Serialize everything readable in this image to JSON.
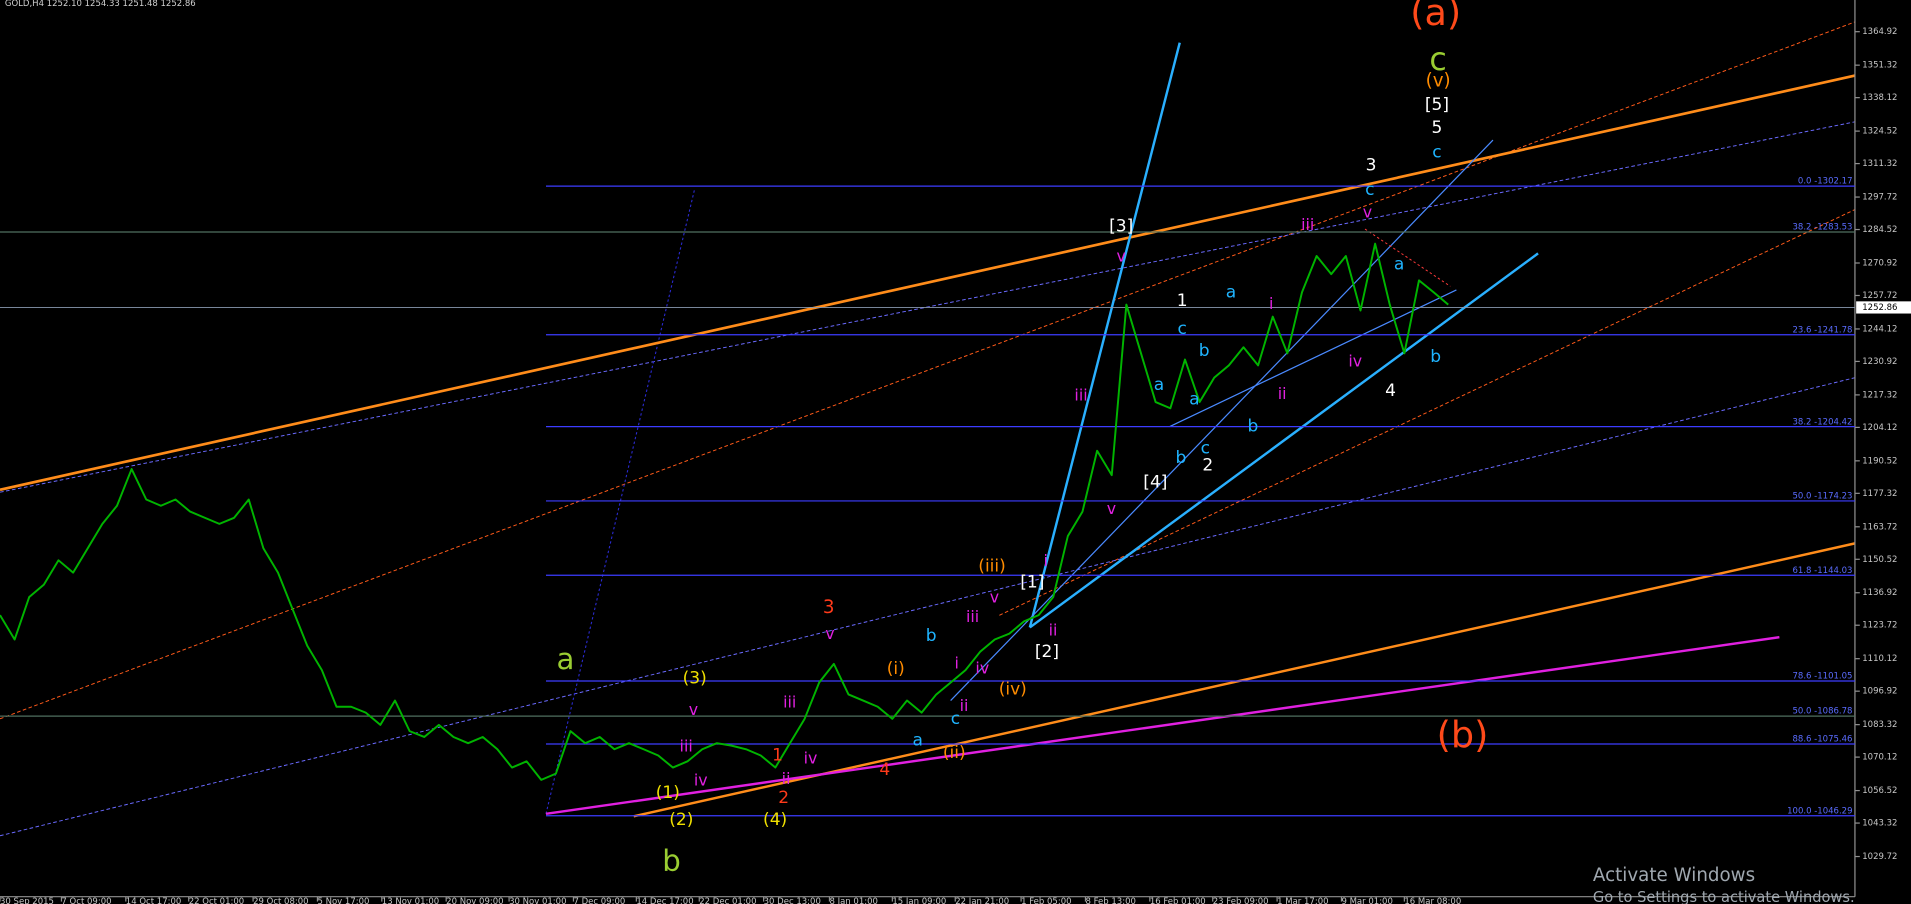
{
  "chart_data": {
    "type": "line",
    "header": "GOLD,H4 1252.10 1254.33 1251.48 1252.86",
    "color": "#00b400",
    "values": [
      1127.8,
      1117.9,
      1135.2,
      1140.2,
      1150.1,
      1145.1,
      1155.0,
      1164.9,
      1172.3,
      1187.2,
      1174.8,
      1172.3,
      1174.8,
      1169.9,
      1167.4,
      1164.9,
      1167.4,
      1174.8,
      1155.0,
      1145.1,
      1130.2,
      1115.4,
      1105.5,
      1090.6,
      1090.6,
      1088.2,
      1083.2,
      1093.1,
      1080.7,
      1078.3,
      1083.2,
      1078.3,
      1075.8,
      1078.3,
      1073.3,
      1065.9,
      1068.4,
      1060.9,
      1063.4,
      1080.7,
      1075.8,
      1078.3,
      1073.3,
      1075.8,
      1073.3,
      1070.8,
      1065.9,
      1068.4,
      1073.3,
      1075.8,
      1074.8,
      1073.3,
      1070.8,
      1065.9,
      1075.8,
      1085.7,
      1100.5,
      1108.0,
      1095.6,
      1093.1,
      1090.6,
      1085.7,
      1093.1,
      1088.2,
      1095.6,
      1100.5,
      1105.5,
      1112.9,
      1117.9,
      1120.3,
      1125.3,
      1127.8,
      1135.2,
      1160.0,
      1169.9,
      1194.6,
      1184.7,
      1254.0,
      1234.2,
      1214.4,
      1211.9,
      1231.7,
      1214.4,
      1224.3,
      1229.3,
      1236.7,
      1229.3,
      1249.1,
      1234.2,
      1259.0,
      1273.8,
      1266.4,
      1273.8,
      1251.6,
      1278.8,
      1254.0,
      1234.2,
      1263.9,
      1259.0,
      1254.0
    ],
    "xlim": [
      0,
      126.8
    ],
    "xticks": [
      {
        "value": 0,
        "label": "30 Sep 2015"
      },
      {
        "value": 4.2,
        "label": "7 Oct 09:00"
      },
      {
        "value": 8.6,
        "label": "14 Oct 17:00"
      },
      {
        "value": 12.9,
        "label": "22 Oct 01:00"
      },
      {
        "value": 17.3,
        "label": "29 Oct 08:00"
      },
      {
        "value": 21.7,
        "label": "5 Nov 17:00"
      },
      {
        "value": 26.1,
        "label": "13 Nov 01:00"
      },
      {
        "value": 30.5,
        "label": "20 Nov 09:00"
      },
      {
        "value": 34.8,
        "label": "30 Nov 01:00"
      },
      {
        "value": 39.2,
        "label": "7 Dec 09:00"
      },
      {
        "value": 43.5,
        "label": "14 Dec 17:00"
      },
      {
        "value": 47.8,
        "label": "22 Dec 01:00"
      },
      {
        "value": 52.2,
        "label": "30 Dec 13:00"
      },
      {
        "value": 56.7,
        "label": "8 Jan 01:00"
      },
      {
        "value": 61.0,
        "label": "15 Jan 09:00"
      },
      {
        "value": 65.3,
        "label": "22 Jan 21:00"
      },
      {
        "value": 69.8,
        "label": "1 Feb 05:00"
      },
      {
        "value": 74.2,
        "label": "8 Feb 13:00"
      },
      {
        "value": 78.6,
        "label": "16 Feb 01:00"
      },
      {
        "value": 82.9,
        "label": "23 Feb 09:00"
      },
      {
        "value": 87.3,
        "label": "1 Mar 17:00"
      },
      {
        "value": 91.7,
        "label": "9 Mar 01:00"
      },
      {
        "value": 96.0,
        "label": "16 Mar 08:00"
      }
    ],
    "ylim": [
      1013.4,
      1377.8
    ],
    "yticks": [
      1029.72,
      1043.32,
      1056.52,
      1070.12,
      1083.32,
      1096.92,
      1110.12,
      1123.72,
      1136.92,
      1150.52,
      1163.72,
      1177.32,
      1190.52,
      1204.12,
      1217.32,
      1230.92,
      1244.12,
      1257.72,
      1270.92,
      1284.52,
      1297.72,
      1311.32,
      1324.52,
      1338.12,
      1351.32,
      1364.92
    ],
    "last_price": 1252.86,
    "fib_levels": [
      {
        "value": 1302.17,
        "label": "0.0 -1302.17",
        "color": "#3c3cff"
      },
      {
        "value": 1283.53,
        "label": "38.2 -1283.53",
        "color": "#4f6f5f"
      },
      {
        "value": 1241.78,
        "label": "23.6 -1241.78",
        "color": "#3c3cff"
      },
      {
        "value": 1204.42,
        "label": "38.2 -1204.42",
        "color": "#3c3cff"
      },
      {
        "value": 1174.23,
        "label": "50.0 -1174.23",
        "color": "#3c3cff"
      },
      {
        "value": 1144.03,
        "label": "61.8 -1144.03",
        "color": "#3c3cff"
      },
      {
        "value": 1101.05,
        "label": "78.6 -1101.05",
        "color": "#3c3cff"
      },
      {
        "value": 1086.78,
        "label": "50.0 -1086.78",
        "color": "#4f6f5f"
      },
      {
        "value": 1075.46,
        "label": "88.6 -1075.46",
        "color": "#3c3cff"
      },
      {
        "value": 1046.29,
        "label": "100.0 -1046.29",
        "color": "#3c3cff"
      }
    ],
    "wave_labels": [
      {
        "text": "(a)",
        "color": "#ff4a1a"
      },
      {
        "text": "c",
        "color": "#9acd32"
      },
      {
        "text": "(v)",
        "color": "#ff8c00"
      },
      {
        "text": "[5]",
        "color": "#ffffff"
      },
      {
        "text": "5",
        "color": "#ffffff"
      },
      {
        "text": "c",
        "color": "#1fb4ff"
      },
      {
        "text": "3",
        "color": "#ffffff"
      },
      {
        "text": "c",
        "color": "#1fb4ff"
      },
      {
        "text": "v",
        "color": "#e020e0"
      },
      {
        "text": "iii",
        "color": "#e020e0"
      },
      {
        "text": "[3]",
        "color": "#ffffff"
      },
      {
        "text": "v",
        "color": "#e020e0"
      },
      {
        "text": "a",
        "color": "#1fb4ff"
      },
      {
        "text": "1",
        "color": "#ffffff"
      },
      {
        "text": "a",
        "color": "#1fb4ff"
      },
      {
        "text": "i",
        "color": "#e020e0"
      },
      {
        "text": "c",
        "color": "#1fb4ff"
      },
      {
        "text": "b",
        "color": "#1fb4ff"
      },
      {
        "text": "a",
        "color": "#1fb4ff"
      },
      {
        "text": "a",
        "color": "#1fb4ff"
      },
      {
        "text": "iii",
        "color": "#e020e0"
      },
      {
        "text": "iv",
        "color": "#e020e0"
      },
      {
        "text": "b",
        "color": "#1fb4ff"
      },
      {
        "text": "4",
        "color": "#ffffff"
      },
      {
        "text": "ii",
        "color": "#e020e0"
      },
      {
        "text": "b",
        "color": "#1fb4ff"
      },
      {
        "text": "c",
        "color": "#1fb4ff"
      },
      {
        "text": "b",
        "color": "#1fb4ff"
      },
      {
        "text": "2",
        "color": "#ffffff"
      },
      {
        "text": "[4]",
        "color": "#ffffff"
      },
      {
        "text": "v",
        "color": "#e020e0"
      },
      {
        "text": "(iii)",
        "color": "#ff8c00"
      },
      {
        "text": "i",
        "color": "#e020e0"
      },
      {
        "text": "[1]",
        "color": "#ffffff"
      },
      {
        "text": "v",
        "color": "#e020e0"
      },
      {
        "text": "iii",
        "color": "#e020e0"
      },
      {
        "text": "3",
        "color": "#ff3a1a"
      },
      {
        "text": "v",
        "color": "#e020e0"
      },
      {
        "text": "b",
        "color": "#1fb4ff"
      },
      {
        "text": "ii",
        "color": "#e020e0"
      },
      {
        "text": "[2]",
        "color": "#ffffff"
      },
      {
        "text": "i",
        "color": "#e020e0"
      },
      {
        "text": "iv",
        "color": "#e020e0"
      },
      {
        "text": "(i)",
        "color": "#ff8c00"
      },
      {
        "text": "a",
        "color": "#9acd32"
      },
      {
        "text": "(3)",
        "color": "#f0e000"
      },
      {
        "text": "(iv)",
        "color": "#ff8c00"
      },
      {
        "text": "v",
        "color": "#e020e0"
      },
      {
        "text": "c",
        "color": "#1fb4ff"
      },
      {
        "text": "ii",
        "color": "#e020e0"
      },
      {
        "text": "iii",
        "color": "#e020e0"
      },
      {
        "text": "a",
        "color": "#1fb4ff"
      },
      {
        "text": "iii",
        "color": "#e020e0"
      },
      {
        "text": "(b)",
        "color": "#ff4a1a"
      },
      {
        "text": "(ii)",
        "color": "#ff8c00"
      },
      {
        "text": "1",
        "color": "#ff3a1a"
      },
      {
        "text": "iv",
        "color": "#e020e0"
      },
      {
        "text": "iv",
        "color": "#e020e0"
      },
      {
        "text": "4",
        "color": "#ff3a1a"
      },
      {
        "text": "ii",
        "color": "#e020e0"
      },
      {
        "text": "(1)",
        "color": "#f0e000"
      },
      {
        "text": "2",
        "color": "#ff3a1a"
      },
      {
        "text": "(2)",
        "color": "#f0e000"
      },
      {
        "text": "(4)",
        "color": "#f0e000"
      },
      {
        "text": "b",
        "color": "#9acd32"
      }
    ],
    "watermark": {
      "title": "Activate Windows",
      "subtitle": "Go to Settings to activate Windows."
    }
  }
}
